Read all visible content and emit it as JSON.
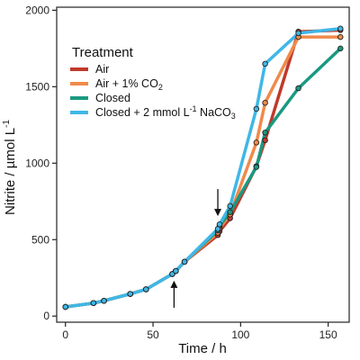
{
  "chart_data": {
    "type": "line",
    "xlabel": "Time / h",
    "ylabel_main": "Nitrite / µmol L",
    "ylabel_sup": "-1",
    "xlim": [
      -5,
      162
    ],
    "ylim": [
      -40,
      2020
    ],
    "x_ticks": [
      0,
      50,
      100,
      150
    ],
    "y_ticks": [
      0,
      500,
      1000,
      1500,
      2000
    ],
    "x_tick_labels": [
      "0",
      "50",
      "100",
      "150"
    ],
    "y_tick_labels": [
      "0",
      "500",
      "1000",
      "1500",
      "2000"
    ],
    "grid": false,
    "legend": {
      "title": "Treatment",
      "position": "top-left",
      "entries": [
        {
          "main": "Air",
          "sub": "",
          "tail": "",
          "sup": "",
          "end": ""
        },
        {
          "main": "Air + 1% CO",
          "sub": "2",
          "tail": "",
          "sup": "",
          "end": ""
        },
        {
          "main": "Closed",
          "sub": "",
          "tail": "",
          "sup": "",
          "end": ""
        },
        {
          "main": "Closed + 2 mmol L",
          "sub": "",
          "tail": "",
          "sup": "-1",
          "end": " NaCO"
        },
        {
          "main": "",
          "sub": "3",
          "tail": "",
          "sup": "",
          "end": ""
        }
      ]
    },
    "arrows": [
      {
        "x": 62,
        "y_tip": 290,
        "direction": "up"
      },
      {
        "x": 87,
        "y_tip": 595,
        "direction": "down"
      }
    ],
    "series": [
      {
        "color": "#c0392b",
        "x": [
          0,
          16,
          22,
          37,
          46,
          61,
          63,
          68,
          87,
          88,
          94,
          109,
          114,
          133,
          157
        ],
        "y": [
          60,
          85,
          100,
          145,
          175,
          275,
          295,
          355,
          530,
          555,
          640,
          980,
          1150,
          1860,
          1870
        ]
      },
      {
        "color": "#f08a4b",
        "x": [
          0,
          16,
          22,
          37,
          46,
          61,
          63,
          68,
          87,
          88,
          94,
          109,
          114,
          133,
          157
        ],
        "y": [
          60,
          85,
          100,
          145,
          175,
          275,
          295,
          355,
          545,
          575,
          665,
          1135,
          1395,
          1825,
          1825
        ]
      },
      {
        "color": "#1a9980",
        "x": [
          0,
          16,
          22,
          37,
          46,
          61,
          63,
          68,
          87,
          88,
          94,
          109,
          114,
          133,
          157
        ],
        "y": [
          60,
          85,
          100,
          145,
          175,
          275,
          295,
          355,
          560,
          590,
          680,
          975,
          1200,
          1490,
          1750
        ]
      },
      {
        "color": "#3fb7e6",
        "x": [
          0,
          16,
          22,
          37,
          46,
          61,
          63,
          68,
          87,
          88,
          94,
          109,
          114,
          133,
          157
        ],
        "y": [
          60,
          85,
          100,
          145,
          175,
          275,
          295,
          355,
          570,
          600,
          720,
          1355,
          1650,
          1850,
          1880
        ]
      }
    ]
  }
}
